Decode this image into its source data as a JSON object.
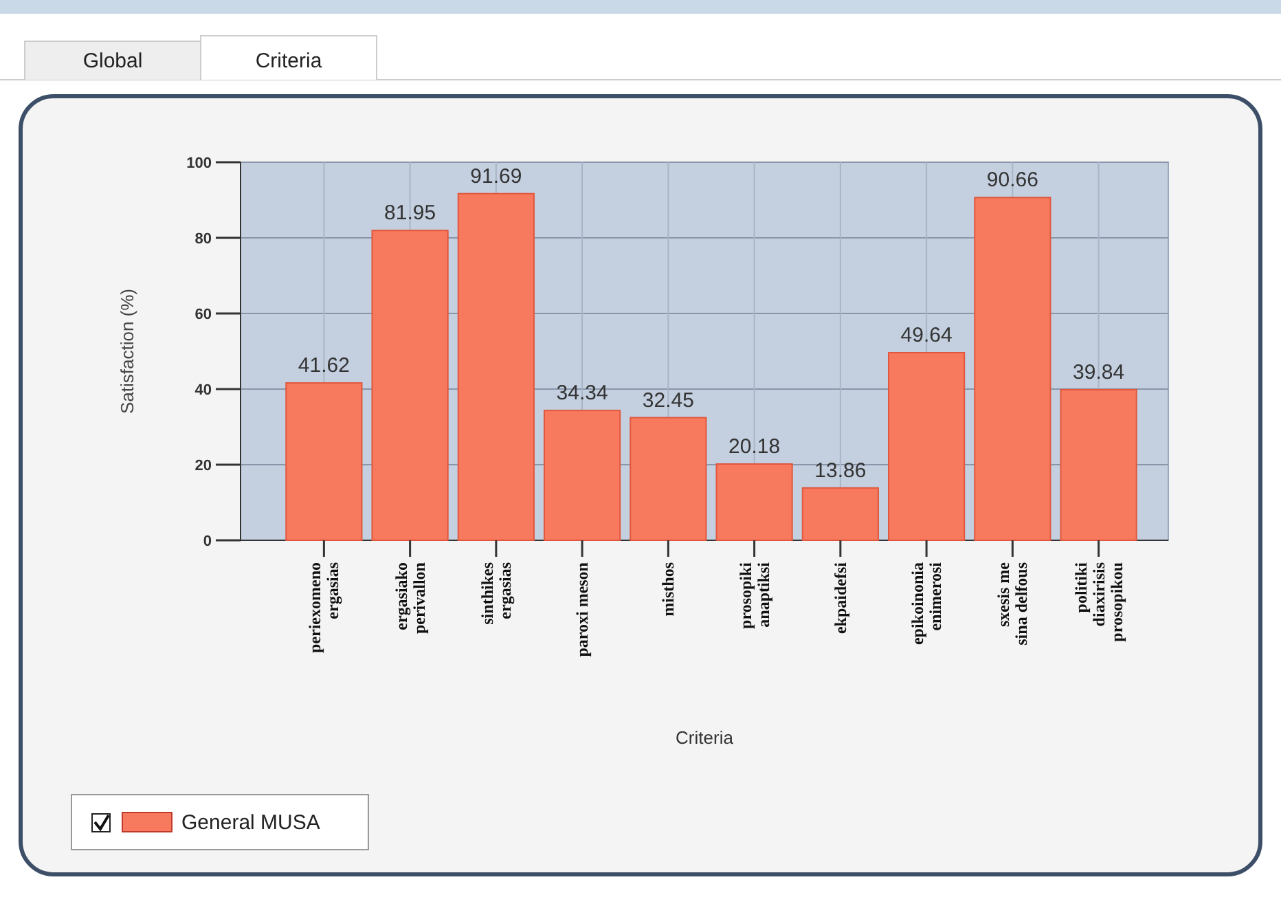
{
  "chart_data": {
    "type": "bar",
    "xlabel": "Criteria",
    "ylabel": "Satisfaction (%)",
    "annotations": [
      "Global",
      "Criteria"
    ],
    "categories": [
      "periexomeno ergasias",
      "ergasiako perivallon",
      "sinthikes ergasias",
      "paroxi meson",
      "misthos",
      "prosopiki anaptiksi",
      "ekpaidefsi",
      "epikoinonia enimerosi",
      "sxesis me sina delfous",
      "politiki diaxirisis prosopikou"
    ],
    "series": [
      {
        "name": "General MUSA",
        "color": "#f87a5e",
        "values": [
          41.62,
          81.95,
          91.69,
          34.34,
          32.45,
          20.18,
          13.86,
          49.64,
          90.66,
          39.84
        ]
      }
    ],
    "ylim": [
      0,
      100
    ],
    "yticks": [
      0,
      20,
      40,
      60,
      80,
      100
    ],
    "grid": true,
    "data_labels": true,
    "legend": "bottom left"
  }
}
